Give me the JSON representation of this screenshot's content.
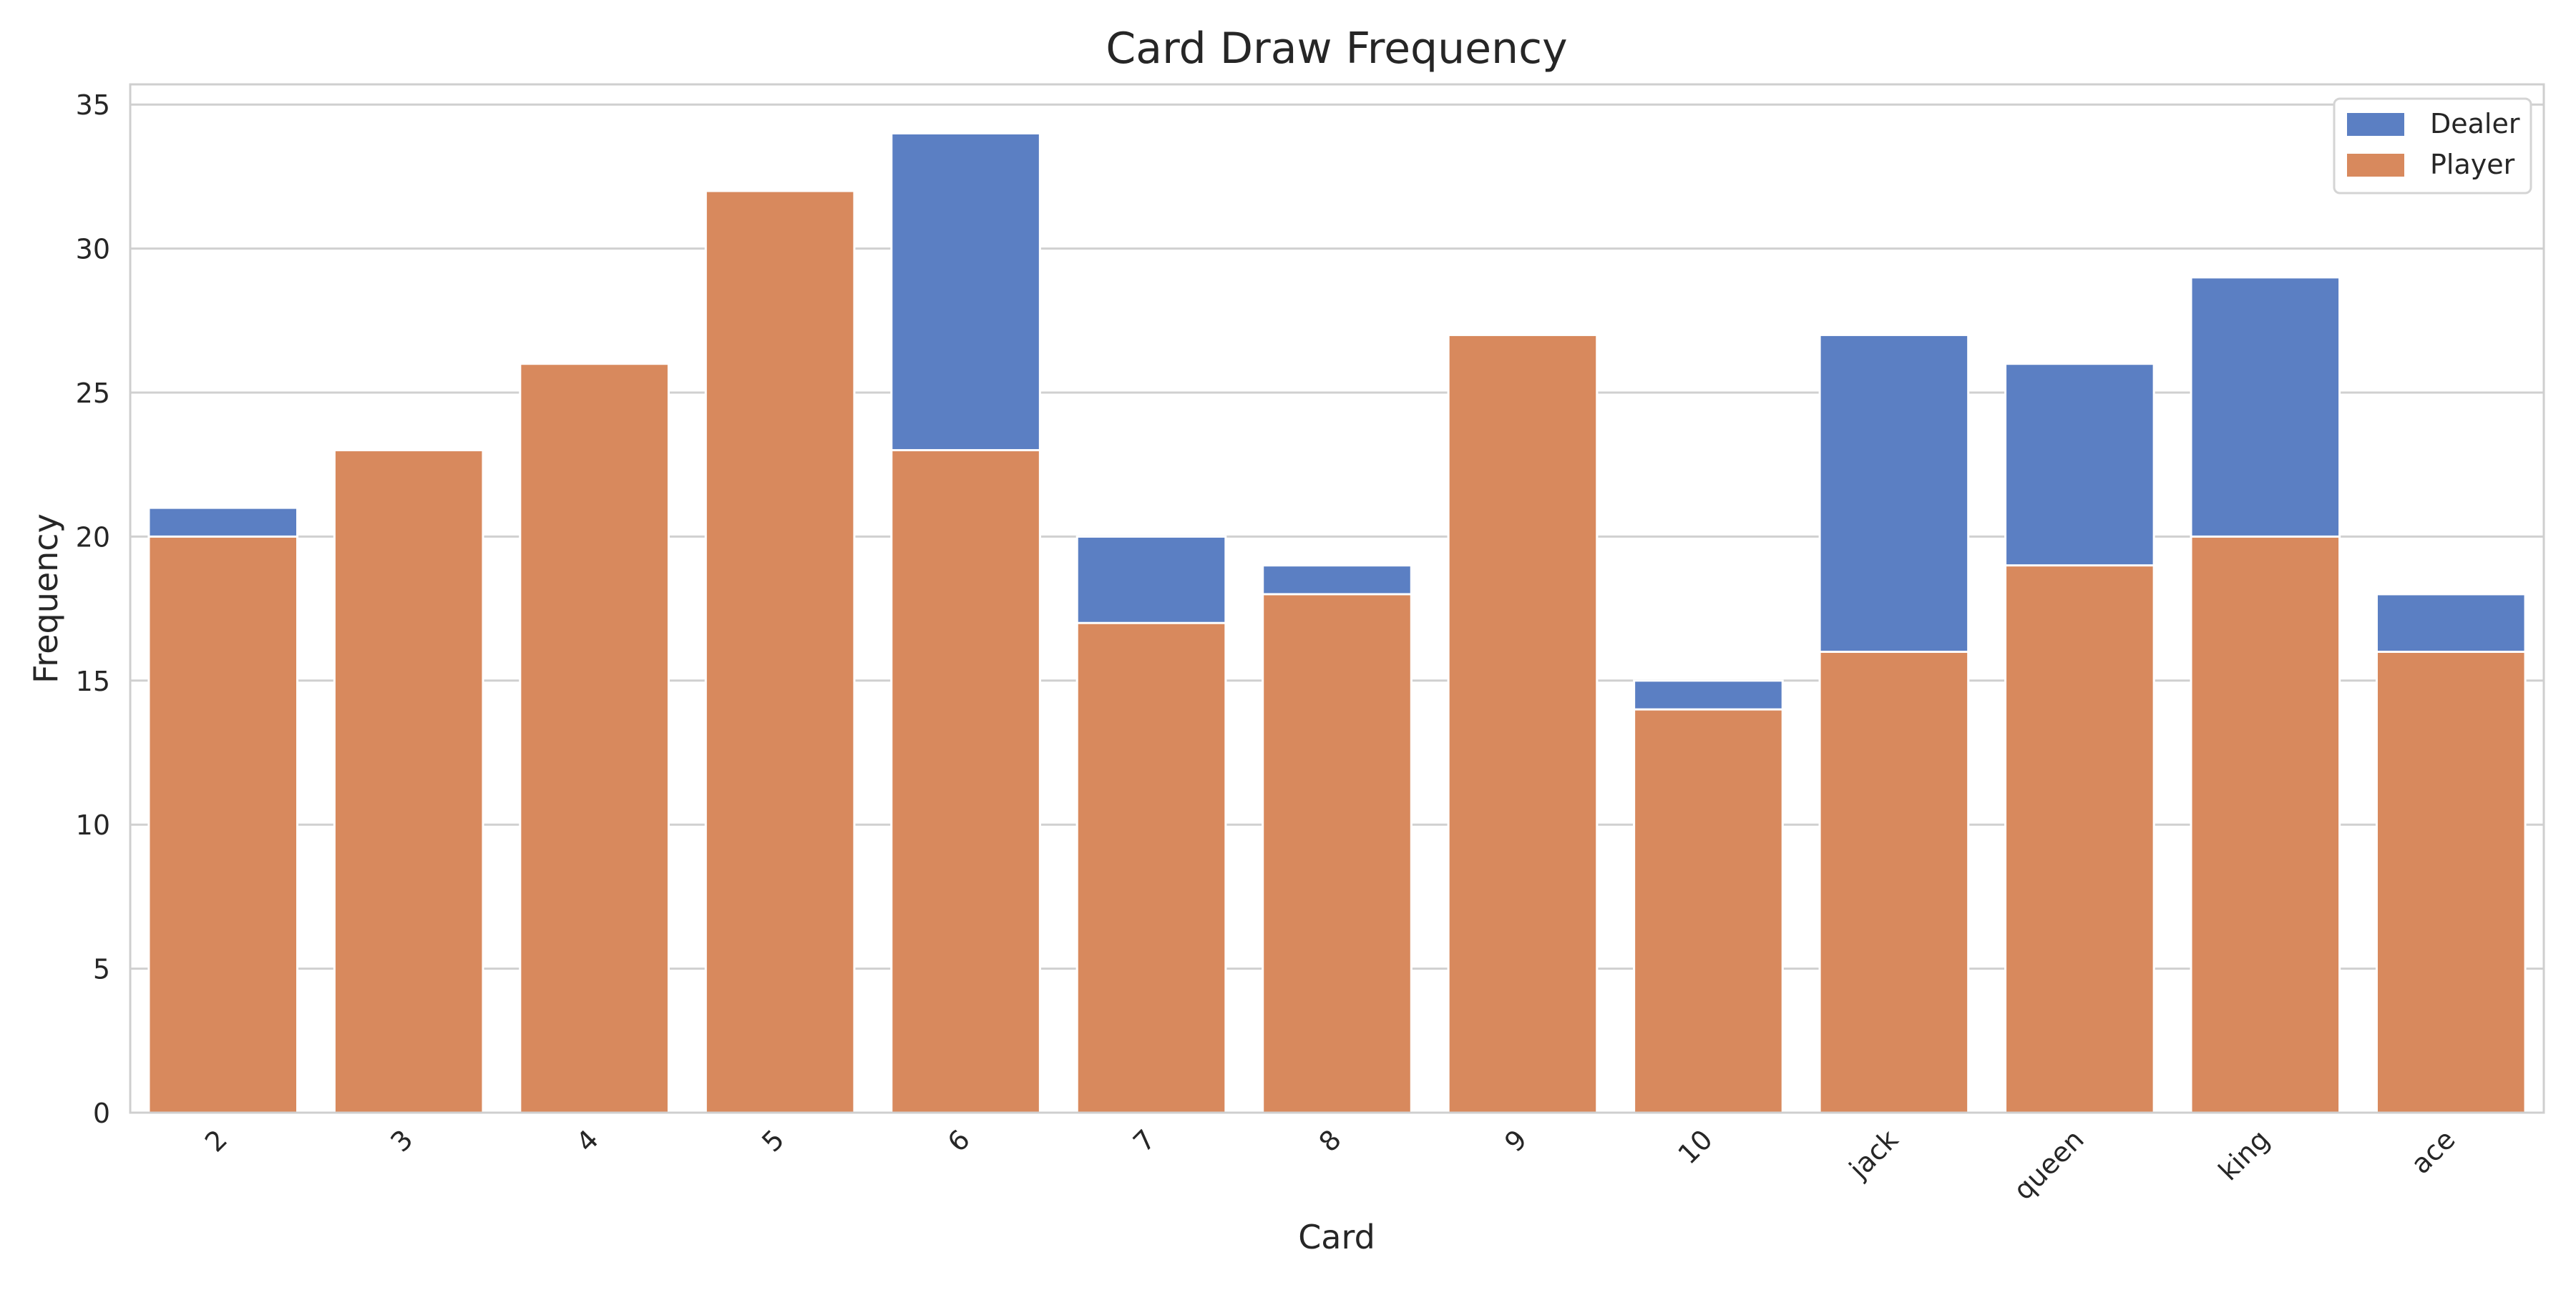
{
  "chart_data": {
    "type": "bar",
    "title": "Card Draw Frequency",
    "xlabel": "Card",
    "ylabel": "Frequency",
    "categories": [
      "2",
      "3",
      "4",
      "5",
      "6",
      "7",
      "8",
      "9",
      "10",
      "jack",
      "queen",
      "king",
      "ace"
    ],
    "series": [
      {
        "name": "Dealer",
        "color": "#5b7fc3",
        "values": [
          21,
          23,
          26,
          32,
          34,
          20,
          19,
          27,
          15,
          27,
          26,
          29,
          18
        ]
      },
      {
        "name": "Player",
        "color": "#d8895d",
        "values": [
          20,
          23,
          26,
          32,
          23,
          17,
          18,
          27,
          14,
          16,
          19,
          20,
          16
        ]
      }
    ],
    "overlay": true,
    "ylim": [
      0,
      35.7
    ],
    "yticks": [
      0,
      5,
      10,
      15,
      20,
      25,
      30,
      35
    ],
    "grid": "horizontal",
    "legend_position": "top-right",
    "x_tick_rotation": -45
  }
}
